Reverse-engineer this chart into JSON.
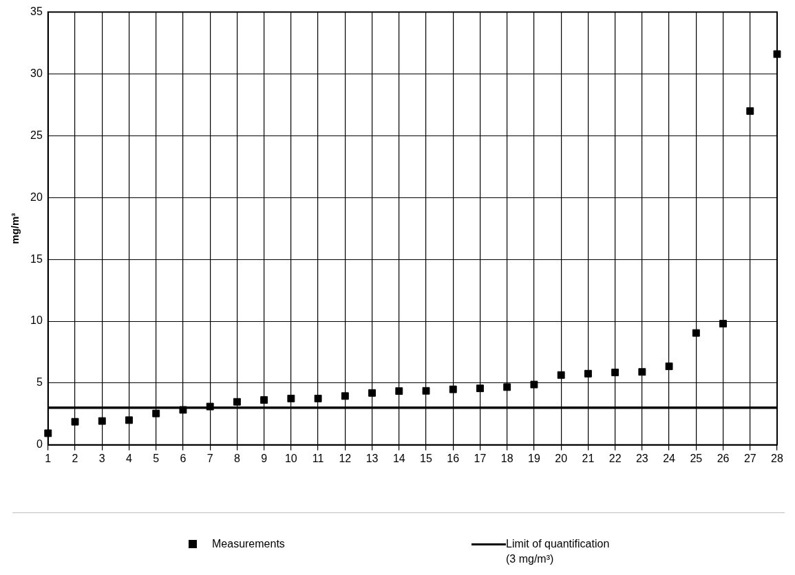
{
  "chart_data": {
    "type": "scatter",
    "ylabel": "mg/m³",
    "x": [
      1,
      2,
      3,
      4,
      5,
      6,
      7,
      8,
      9,
      10,
      11,
      12,
      13,
      14,
      15,
      16,
      17,
      18,
      19,
      20,
      21,
      22,
      23,
      24,
      25,
      26,
      27,
      28
    ],
    "series": [
      {
        "name": "Measurements",
        "color": "#000000",
        "values": [
          0.94,
          1.87,
          1.93,
          2.0,
          2.54,
          2.83,
          3.1,
          3.48,
          3.63,
          3.75,
          3.75,
          3.95,
          4.2,
          4.35,
          4.37,
          4.49,
          4.57,
          4.67,
          4.88,
          5.65,
          5.76,
          5.86,
          5.9,
          6.35,
          9.05,
          9.8,
          27.0,
          31.6
        ]
      }
    ],
    "ref_lines": [
      {
        "axis": "y",
        "value": 3,
        "label": "Limit of quantification\n(3 mg/m³)",
        "color": "#000000"
      }
    ],
    "xlim": [
      1,
      28
    ],
    "xticks": [
      1,
      2,
      3,
      4,
      5,
      6,
      7,
      8,
      9,
      10,
      11,
      12,
      13,
      14,
      15,
      16,
      17,
      18,
      19,
      20,
      21,
      22,
      23,
      24,
      25,
      26,
      27,
      28
    ],
    "ylim": [
      0,
      35
    ],
    "yticks": [
      0,
      5,
      10,
      15,
      20,
      25,
      30,
      35
    ],
    "grid": true,
    "legend": "bottom",
    "marker": "square"
  }
}
